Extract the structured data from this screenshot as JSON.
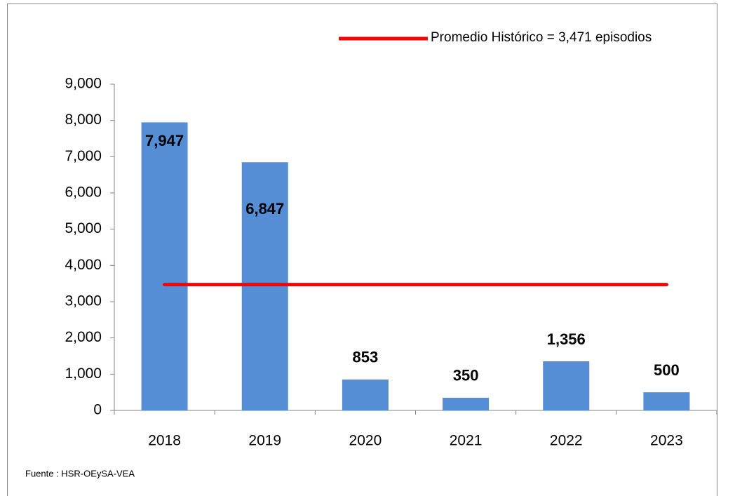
{
  "chart_data": {
    "type": "bar",
    "categories": [
      "2018",
      "2019",
      "2020",
      "2021",
      "2022",
      "2023"
    ],
    "series": [
      {
        "type": "bar",
        "color": "#558ed5",
        "values": [
          7947,
          6847,
          853,
          350,
          1356,
          500
        ],
        "value_labels": [
          "7,947",
          "6,847",
          "853",
          "350",
          "1,356",
          "500"
        ]
      },
      {
        "type": "line",
        "name": "Promedio Histórico = 3,471 episodios",
        "color": "#ff0000",
        "values": [
          3471,
          3471,
          3471,
          3471,
          3471,
          3471
        ]
      }
    ],
    "ylim": [
      0,
      9000
    ],
    "yticks": [
      0,
      {
        "value": 1000,
        "label": "1,000"
      },
      {
        "value": 2000,
        "label": "2,000"
      },
      {
        "value": 3000,
        "label": "3,000"
      },
      {
        "value": 4000,
        "label": "4,000"
      },
      {
        "value": 5000,
        "label": "5,000"
      },
      {
        "value": 6000,
        "label": "6,000"
      },
      {
        "value": 7000,
        "label": "7,000"
      },
      {
        "value": 8000,
        "label": "8,000"
      },
      {
        "value": 9000,
        "label": "9,000"
      }
    ],
    "grid": false,
    "source": "Fuente : HSR-OEySA-VEA"
  }
}
